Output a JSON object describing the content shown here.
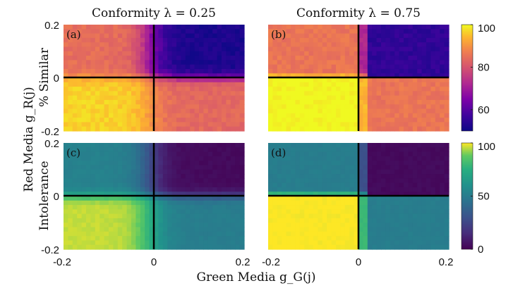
{
  "chart_data": {
    "type": "heatmap",
    "titles": [
      "Conformity λ = 0.25",
      "Conformity λ = 0.75"
    ],
    "xlabel": "Green Media g_G(j)",
    "ylabel": "Red Media g_R(j)",
    "row_labels": [
      "% Similar",
      "Intolerance"
    ],
    "x_range": [
      -0.2,
      0.2
    ],
    "y_range": [
      -0.2,
      0.2
    ],
    "x_ticks": [
      "-0.2",
      "0",
      "0.2"
    ],
    "y_ticks": [
      "0.2",
      "0",
      "-0.2"
    ],
    "colorbars": [
      {
        "name": "% Similar",
        "colormap": "plasma",
        "range": [
          50,
          100
        ],
        "ticks": [
          100,
          80,
          60
        ]
      },
      {
        "name": "Intolerance",
        "colormap": "viridis",
        "range": [
          0,
          100
        ],
        "ticks": [
          100,
          50,
          0
        ]
      }
    ],
    "panels": [
      {
        "tag": "(a)",
        "metric": "% Similar",
        "lambda": 0.25,
        "regions": {
          "upper_left": 83,
          "upper_right": 52,
          "lower_left": 96,
          "lower_right": 82
        }
      },
      {
        "tag": "(b)",
        "metric": "% Similar",
        "lambda": 0.75,
        "regions": {
          "upper_left": 84,
          "upper_right": 55,
          "lower_left": 100,
          "lower_right": 84
        }
      },
      {
        "tag": "(c)",
        "metric": "Intolerance",
        "lambda": 0.25,
        "regions": {
          "upper_left": 50,
          "upper_right": 3,
          "lower_left": 95,
          "lower_right": 48
        }
      },
      {
        "tag": "(d)",
        "metric": "Intolerance",
        "lambda": 0.75,
        "regions": {
          "upper_left": 48,
          "upper_right": 3,
          "lower_left": 100,
          "lower_right": 48
        }
      }
    ]
  }
}
